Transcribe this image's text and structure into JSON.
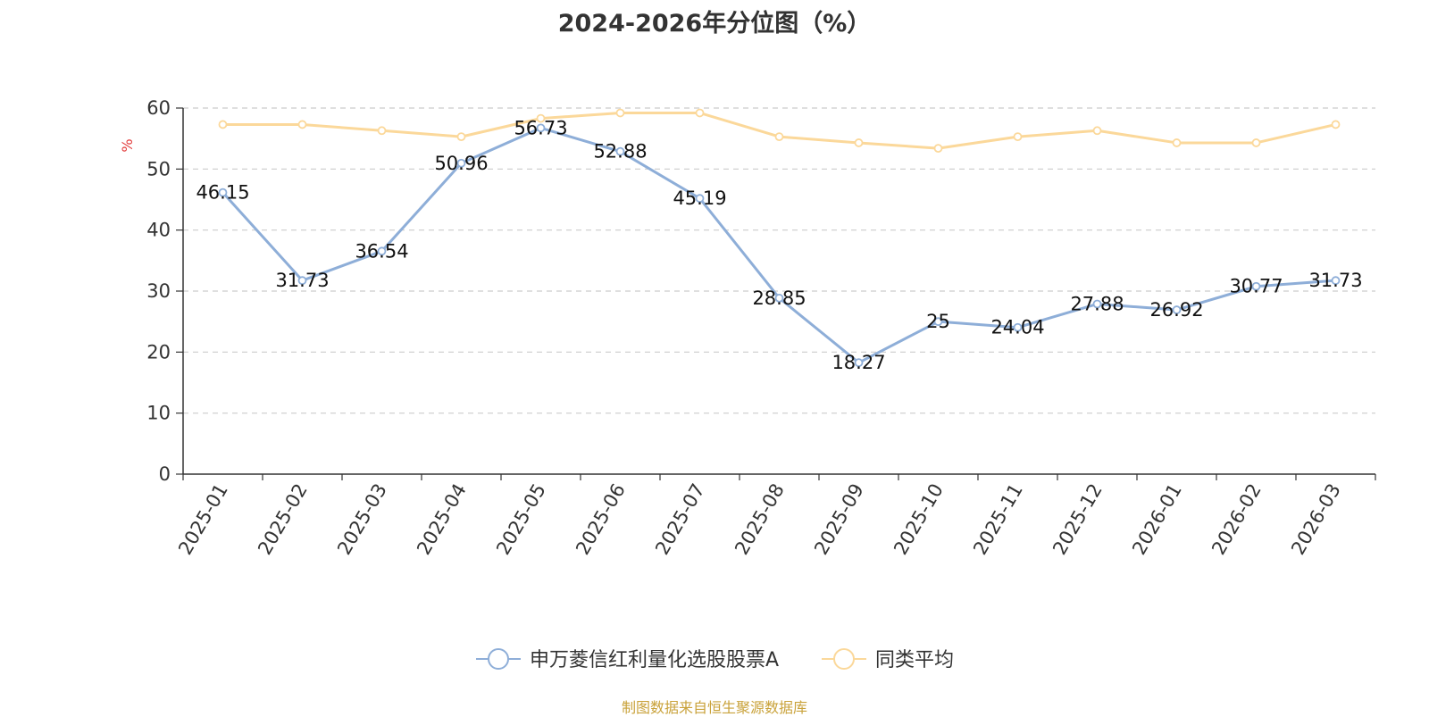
{
  "chart_data": {
    "type": "line",
    "title": "2024-2026年分位图（%）",
    "ylabel": "%",
    "x": [
      "2025-01",
      "2025-02",
      "2025-03",
      "2025-04",
      "2025-05",
      "2025-06",
      "2025-07",
      "2025-08",
      "2025-09",
      "2025-10",
      "2025-11",
      "2025-12",
      "2026-01",
      "2026-02",
      "2026-03"
    ],
    "ylim": [
      0,
      60
    ],
    "yticks": [
      0,
      10,
      20,
      30,
      40,
      50,
      60
    ],
    "grid": true,
    "legend_position": "bottom",
    "series": [
      {
        "name": "申万菱信红利量化选股股票A",
        "color": "#8eaed8",
        "values": [
          46.15,
          31.73,
          36.54,
          50.96,
          56.73,
          52.88,
          45.19,
          28.85,
          18.27,
          25,
          24.04,
          27.88,
          26.92,
          30.77,
          31.73
        ],
        "data_labels": [
          "46.15",
          "31.73",
          "36.54",
          "50.96",
          "56.73",
          "52.88",
          "45.19",
          "28.85",
          "18.27",
          "25",
          "24.04",
          "27.88",
          "26.92",
          "30.77",
          "31.73"
        ]
      },
      {
        "name": "同类平均",
        "color": "#fbd89a",
        "values": [
          57.3,
          57.3,
          56.3,
          55.3,
          58.3,
          59.2,
          59.2,
          55.3,
          54.3,
          53.4,
          55.3,
          56.3,
          54.3,
          54.3,
          57.3
        ]
      }
    ]
  },
  "source": {
    "text": "制图数据来自恒生聚源数据库",
    "color": "#c9a23a"
  },
  "ylabel_color": "#e23b3b"
}
